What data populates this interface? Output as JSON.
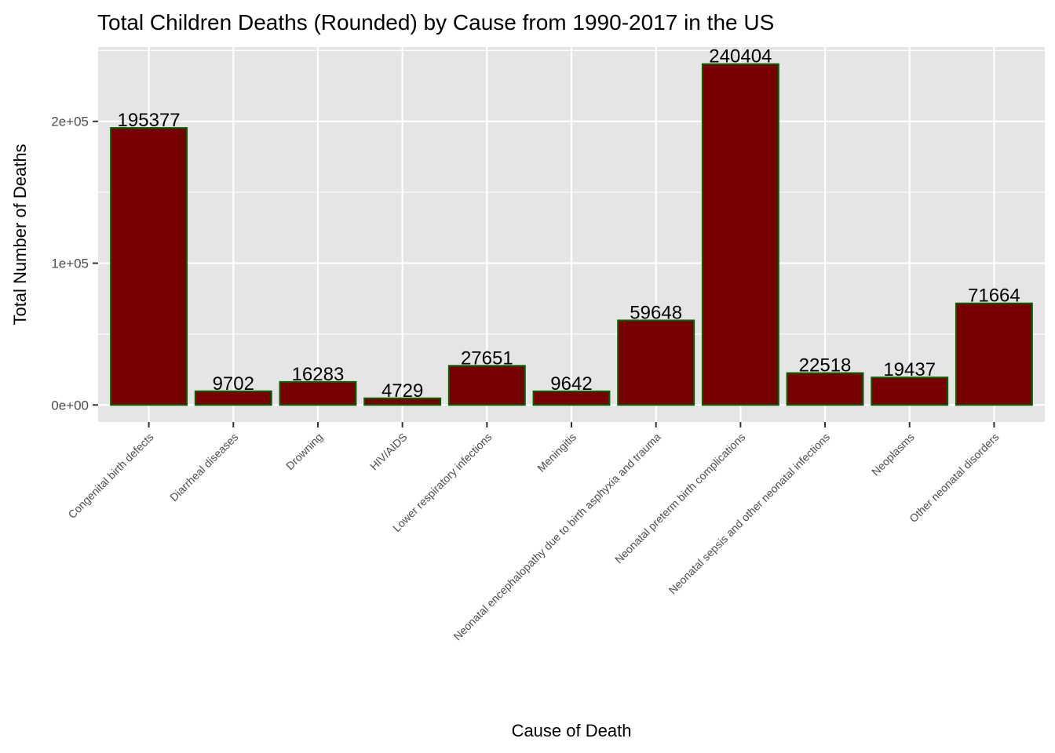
{
  "chart_data": {
    "type": "bar",
    "title": "Total Children Deaths (Rounded) by Cause from 1990-2017 in the US",
    "xlabel": "Cause of Death",
    "ylabel": "Total Number of Deaths",
    "categories": [
      "Congenital birth defects",
      "Diarrheal diseases",
      "Drowning",
      "HIV/AIDS",
      "Lower respiratory infections",
      "Meningitis",
      "Neonatal encephalopathy due to birth asphyxia and trauma",
      "Neonatal preterm birth complications",
      "Neonatal sepsis and other neonatal infections",
      "Neoplasms",
      "Other neonatal disorders"
    ],
    "values": [
      195377,
      9702,
      16283,
      4729,
      27651,
      9642,
      59648,
      240404,
      22518,
      19437,
      71664
    ],
    "data_labels": [
      "195377",
      "9702",
      "16283",
      "4729",
      "27651",
      "9642",
      "59648",
      "240404",
      "22518",
      "19437",
      "71664"
    ],
    "ylim": [
      -12000,
      252400
    ],
    "yticks": [
      0,
      100000,
      200000
    ],
    "ytick_labels": [
      "0e+00",
      "1e+05",
      "2e+05"
    ],
    "grid": true,
    "colors": {
      "bar_fill": "#770000",
      "bar_outline": "#006400",
      "panel": "#e5e5e5",
      "grid": "#ffffff"
    }
  }
}
